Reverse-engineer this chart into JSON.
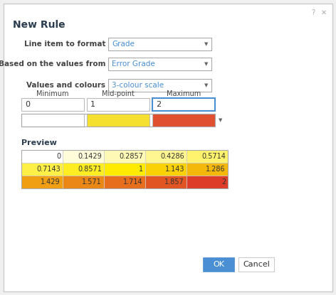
{
  "title": "New Rule",
  "bg_color": "#f0f0f0",
  "dialog_bg": "#ffffff",
  "label1": "Line item to format",
  "dropdown1": "Grade",
  "label2": "Based on the values from",
  "dropdown2": "Error Grade",
  "label3": "Values and colours",
  "dropdown3": "3-colour scale",
  "col_labels": [
    "Minimum",
    "Mid-point",
    "Maximum"
  ],
  "input_values": [
    "0",
    "1",
    "2"
  ],
  "color_boxes": [
    "#ffffff",
    "#f5e030",
    "#e05030"
  ],
  "preview_label": "Preview",
  "preview_values": [
    [
      0,
      0.1429,
      0.2857,
      0.4286,
      0.5714
    ],
    [
      0.7143,
      0.8571,
      1,
      1.143,
      1.286
    ],
    [
      1.429,
      1.571,
      1.714,
      1.857,
      2
    ]
  ],
  "ok_btn_color": "#4a8fd4",
  "ok_btn_text": "OK",
  "cancel_btn_text": "Cancel",
  "dropdown_text_color": "#4a8fd4",
  "input_border_active": "#4a8fd4",
  "input_border_normal": "#bbbbbb",
  "text_color": "#333333",
  "label_color": "#444444",
  "header_color": "#2c3e50",
  "dialog_border": "#cccccc",
  "help_icon_color": "#aaaaaa",
  "close_icon_color": "#aaaaaa"
}
